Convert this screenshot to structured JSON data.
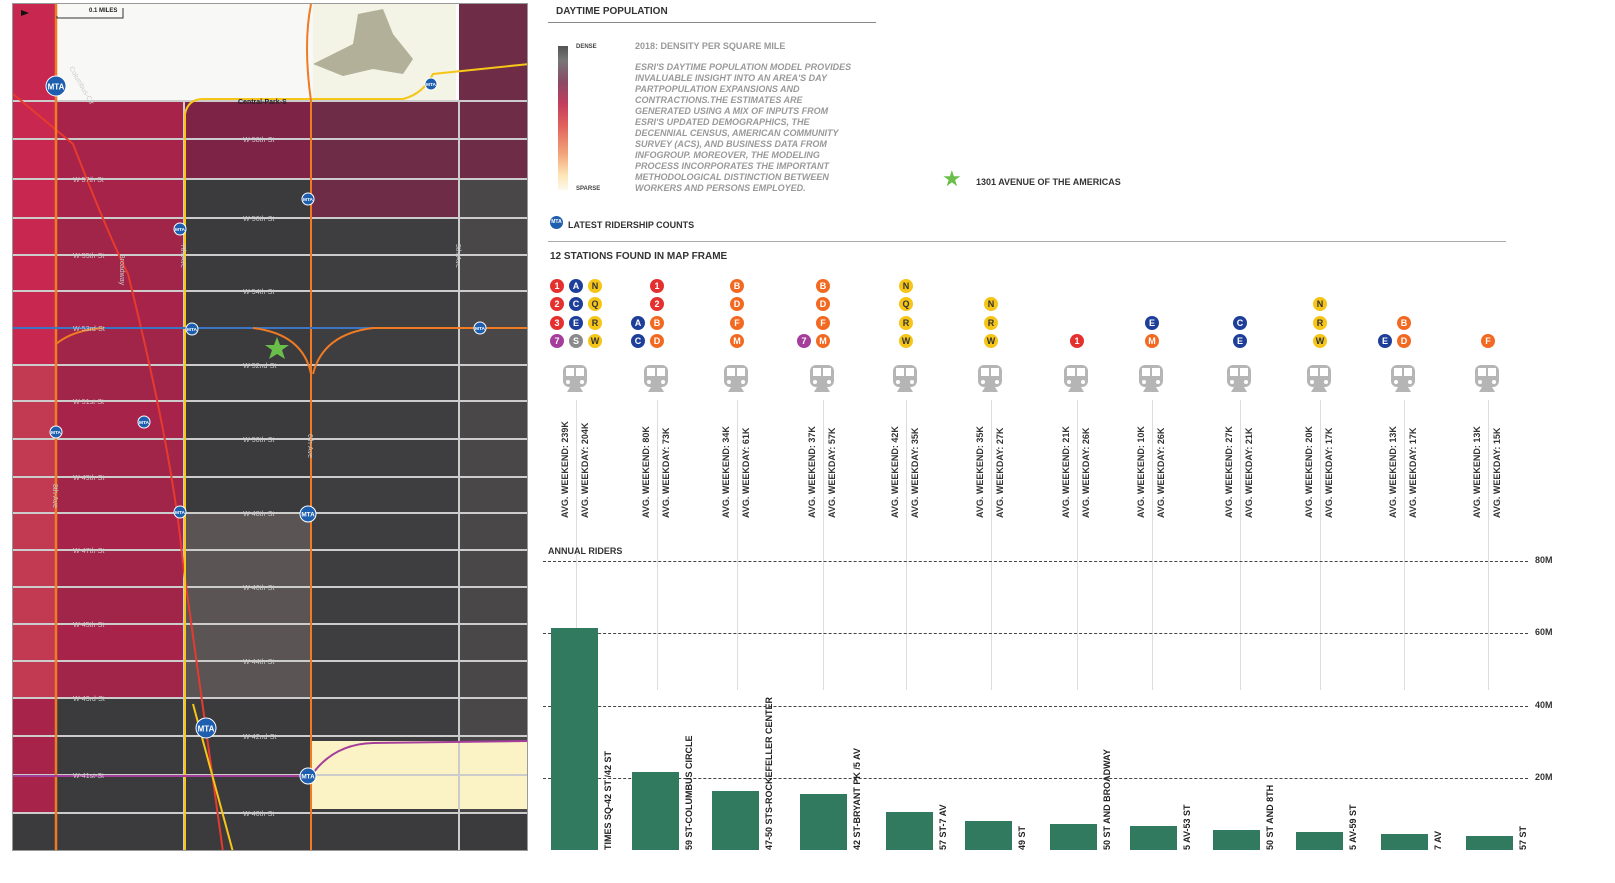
{
  "map": {
    "scale_label": "0.1 MILES",
    "streets": [
      "Central-Park-S",
      "W-58th-St",
      "W 57th St",
      "W-56th-St",
      "W-55th-St",
      "W-54th-St",
      "W-53rd-St",
      "W-52nd-St",
      "W-51st-St",
      "W-50th-St",
      "W-49th-St",
      "W-48th-St",
      "W-47th-St",
      "W-46th-St",
      "W-45th-St",
      "W-44th-St",
      "W-43rd-St",
      "W-42nd-St",
      "W-41st-St",
      "W-40th-St"
    ],
    "avenues": [
      "8th-Ave",
      "7th-Ave",
      "6th-Ave",
      "5th-Ave",
      "Broadway",
      "Columbus-Cir"
    ],
    "station_badge": "MTA"
  },
  "legend": {
    "title": "DAYTIME POPULATION",
    "dense": "DENSE",
    "sparse": "SPARSE",
    "subtitle": "2018: DENSITY PER SQUARE MILE",
    "description": "ESRI'S DAYTIME POPULATION MODEL PROVIDES INVALUABLE INSIGHT INTO AN AREA'S DAY PARTPOPULATION EXPANSIONS AND CONTRACTIONS.THE ESTIMATES ARE GENERATED USING A MIX OF INPUTS FROM ESRI'S UPDATED DEMOGRAPHICS, THE DECENNIAL CENSUS, AMERICAN COMMUNITY SURVEY (ACS), AND BUSINESS DATA FROM INFOGROUP. MOREOVER, THE MODELING PROCESS INCORPORATES THE IMPORTANT METHODOLOGICAL DISTINCTION BETWEEN WORKERS AND PERSONS EMPLOYED.",
    "location": "1301 AVENUE OF THE AMERICAS",
    "location_color": "#6abf4b"
  },
  "ridership": {
    "title": "LATEST RIDERSHIP COUNTS",
    "count_label": "12 STATIONS FOUND IN MAP FRAME",
    "line_colors": {
      "red": "#e4312f",
      "blue": "#1d3f99",
      "yellow": "#f5c518",
      "orange": "#f26a21",
      "purple": "#a53e9b",
      "gray": "#8a8a8a"
    },
    "stations": [
      {
        "lines": [
          [
            [
              "1",
              "red"
            ],
            [
              "A",
              "blue"
            ],
            [
              "N",
              "yellow"
            ]
          ],
          [
            [
              "2",
              "red"
            ],
            [
              "C",
              "blue"
            ],
            [
              "Q",
              "yellow"
            ]
          ],
          [
            [
              "3",
              "red"
            ],
            [
              "E",
              "blue"
            ],
            [
              "R",
              "yellow"
            ]
          ],
          [
            [
              "7",
              "purple"
            ],
            [
              "S",
              "gray"
            ],
            [
              "W",
              "yellow"
            ]
          ]
        ],
        "weekend": "AVG. WEEKEND: 239K",
        "weekday": "AVG. WEEKDAY: 204K"
      },
      {
        "lines": [
          [
            [
              "1",
              "red"
            ]
          ],
          [
            [
              "2",
              "red"
            ]
          ],
          [
            [
              "A",
              "blue"
            ],
            [
              "B",
              "orange"
            ]
          ],
          [
            [
              "C",
              "blue"
            ],
            [
              "D",
              "orange"
            ]
          ]
        ],
        "weekend": "AVG. WEEKEND: 80K",
        "weekday": "AVG. WEEKDAY: 73K"
      },
      {
        "lines": [
          [
            [
              "B",
              "orange"
            ]
          ],
          [
            [
              "D",
              "orange"
            ]
          ],
          [
            [
              "F",
              "orange"
            ]
          ],
          [
            [
              "M",
              "orange"
            ]
          ]
        ],
        "weekend": "AVG. WEEKEND: 34K",
        "weekday": "AVG. WEEKDAY: 61K"
      },
      {
        "lines": [
          [
            [
              "B",
              "orange"
            ]
          ],
          [
            [
              "D",
              "orange"
            ]
          ],
          [
            [
              "F",
              "orange"
            ]
          ],
          [
            [
              "7",
              "purple"
            ],
            [
              "M",
              "orange"
            ]
          ]
        ],
        "weekend": "AVG. WEEKEND: 37K",
        "weekday": "AVG. WEEKDAY: 57K"
      },
      {
        "lines": [
          [
            [
              "N",
              "yellow"
            ]
          ],
          [
            [
              "Q",
              "yellow"
            ]
          ],
          [
            [
              "R",
              "yellow"
            ]
          ],
          [
            [
              "W",
              "yellow"
            ]
          ]
        ],
        "weekend": "AVG. WEEKEND: 42K",
        "weekday": "AVG. WEEKDAY: 35K"
      },
      {
        "lines": [
          [
            [
              "N",
              "yellow"
            ]
          ],
          [
            [
              "R",
              "yellow"
            ]
          ],
          [
            [
              "W",
              "yellow"
            ]
          ]
        ],
        "weekend": "AVG. WEEKEND: 35K",
        "weekday": "AVG. WEEKDAY: 27K"
      },
      {
        "lines": [
          [
            [
              "1",
              "red"
            ]
          ]
        ],
        "weekend": "AVG. WEEKEND: 21K",
        "weekday": "AVG. WEEKDAY: 26K"
      },
      {
        "lines": [
          [
            [
              "E",
              "blue"
            ]
          ],
          [
            [
              "M",
              "orange"
            ]
          ]
        ],
        "weekend": "AVG. WEEKEND: 10K",
        "weekday": "AVG. WEEKDAY: 26K"
      },
      {
        "lines": [
          [
            [
              "C",
              "blue"
            ]
          ],
          [
            [
              "E",
              "blue"
            ]
          ]
        ],
        "weekend": "AVG. WEEKEND: 27K",
        "weekday": "AVG. WEEKDAY: 21K"
      },
      {
        "lines": [
          [
            [
              "N",
              "yellow"
            ]
          ],
          [
            [
              "R",
              "yellow"
            ]
          ],
          [
            [
              "W",
              "yellow"
            ]
          ]
        ],
        "weekend": "AVG. WEEKEND: 20K",
        "weekday": "AVG. WEEKDAY: 17K"
      },
      {
        "lines": [
          [
            [
              "B",
              "orange"
            ]
          ],
          [
            [
              "E",
              "blue"
            ],
            [
              "D",
              "orange"
            ]
          ]
        ],
        "weekend": "AVG. WEEKEND: 13K",
        "weekday": "AVG. WEEKDAY: 17K"
      },
      {
        "lines": [
          [
            [
              "F",
              "orange"
            ]
          ]
        ],
        "weekend": "AVG. WEEKEND: 13K",
        "weekday": "AVG. WEEKDAY: 15K"
      }
    ]
  },
  "chart_data": {
    "type": "bar",
    "title": "ANNUAL RIDERS",
    "categories": [
      "TIMES SQ-42 ST /42 ST",
      "59 ST-COLUMBUS CIRCLE",
      "47-50 STS-ROCKEFELLER CENTER",
      "42 ST-BRYANT PK /5 AV",
      "57 ST-7 AV",
      "49 ST",
      "50 ST AND BROADWAY",
      "5 AV-53 ST",
      "50 ST AND 8TH",
      "5 AV-59 ST",
      "7 AV",
      "57 ST"
    ],
    "values": [
      61.4,
      21.7,
      16.4,
      15.6,
      10.6,
      8.0,
      7.2,
      6.7,
      5.6,
      5.0,
      4.4,
      3.9
    ],
    "unit": "M",
    "ylim": [
      0,
      80
    ],
    "yticks": [
      "20M",
      "40M",
      "60M",
      "80M"
    ],
    "bar_color": "#327a5f",
    "grid": "dashed horizontal"
  }
}
